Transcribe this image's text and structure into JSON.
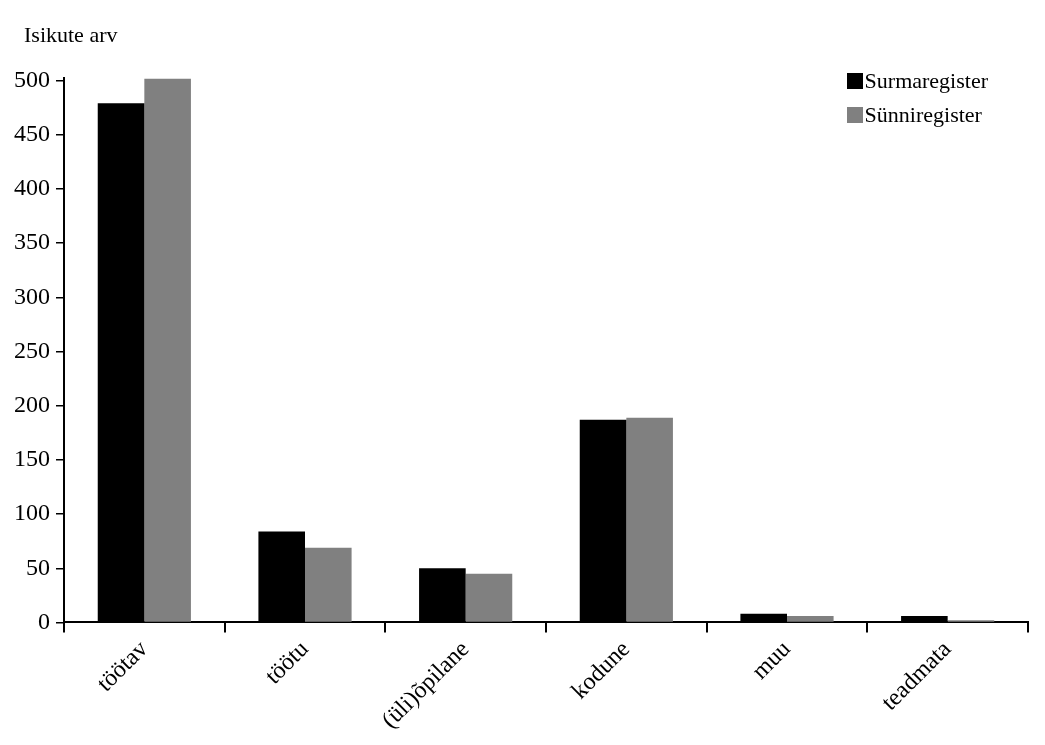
{
  "chart_data": {
    "type": "bar",
    "ylabel": "Isikute arv",
    "categories": [
      "töötav",
      "töötu",
      "(üli)õpilane",
      "kodune",
      "muu",
      "teadmata"
    ],
    "series": [
      {
        "name": "Surmaregister",
        "color": "#000000",
        "values": [
          479,
          84,
          50,
          187,
          8,
          6
        ]
      },
      {
        "name": "Sünniregister",
        "color": "#808080",
        "values": [
          502,
          69,
          45,
          189,
          6,
          2
        ]
      }
    ],
    "ylim": [
      0,
      502
    ],
    "yticks": [
      0,
      50,
      100,
      150,
      200,
      250,
      300,
      350,
      400,
      450,
      500
    ],
    "grid": false,
    "legend": "top right"
  }
}
